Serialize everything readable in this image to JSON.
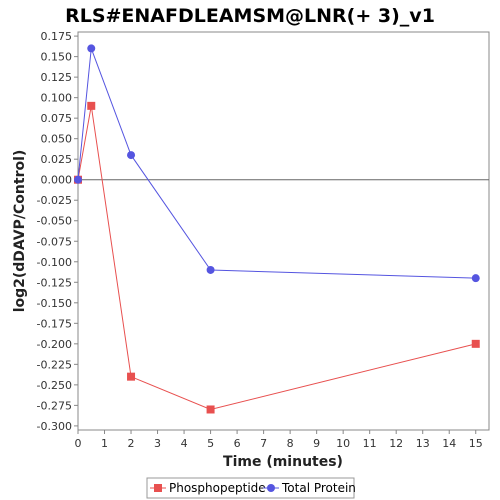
{
  "chart_data": {
    "type": "line",
    "title": "RLS#ENAFDLEAMSM@LNR(+ 3)_v1",
    "xlabel": "Time (minutes)",
    "ylabel": "log2(dDAVP/Control)",
    "xlim": [
      0,
      15.5
    ],
    "ylim": [
      -0.305,
      0.18
    ],
    "x_ticks": [
      "0",
      "1",
      "2",
      "3",
      "4",
      "5",
      "6",
      "7",
      "8",
      "9",
      "10",
      "11",
      "12",
      "13",
      "14",
      "15"
    ],
    "y_ticks": [
      "0.175",
      "0.150",
      "0.125",
      "0.100",
      "0.075",
      "0.050",
      "0.025",
      "0.000",
      "-0.025",
      "-0.050",
      "-0.075",
      "-0.100",
      "-0.125",
      "-0.150",
      "-0.175",
      "-0.200",
      "-0.225",
      "-0.250",
      "-0.275",
      "-0.300"
    ],
    "zero_line": true,
    "grid": false,
    "legend_position": "bottom-center",
    "series": [
      {
        "name": "Phosphopeptide",
        "color": "#e8504f",
        "marker": "square",
        "x": [
          0,
          0.5,
          2,
          5,
          15
        ],
        "y": [
          0.0,
          0.09,
          -0.24,
          -0.28,
          -0.2
        ]
      },
      {
        "name": "Total Protein",
        "color": "#5555e0",
        "marker": "circle",
        "x": [
          0,
          0.5,
          2,
          5,
          15
        ],
        "y": [
          0.0,
          0.16,
          0.03,
          -0.11,
          -0.12
        ]
      }
    ]
  }
}
